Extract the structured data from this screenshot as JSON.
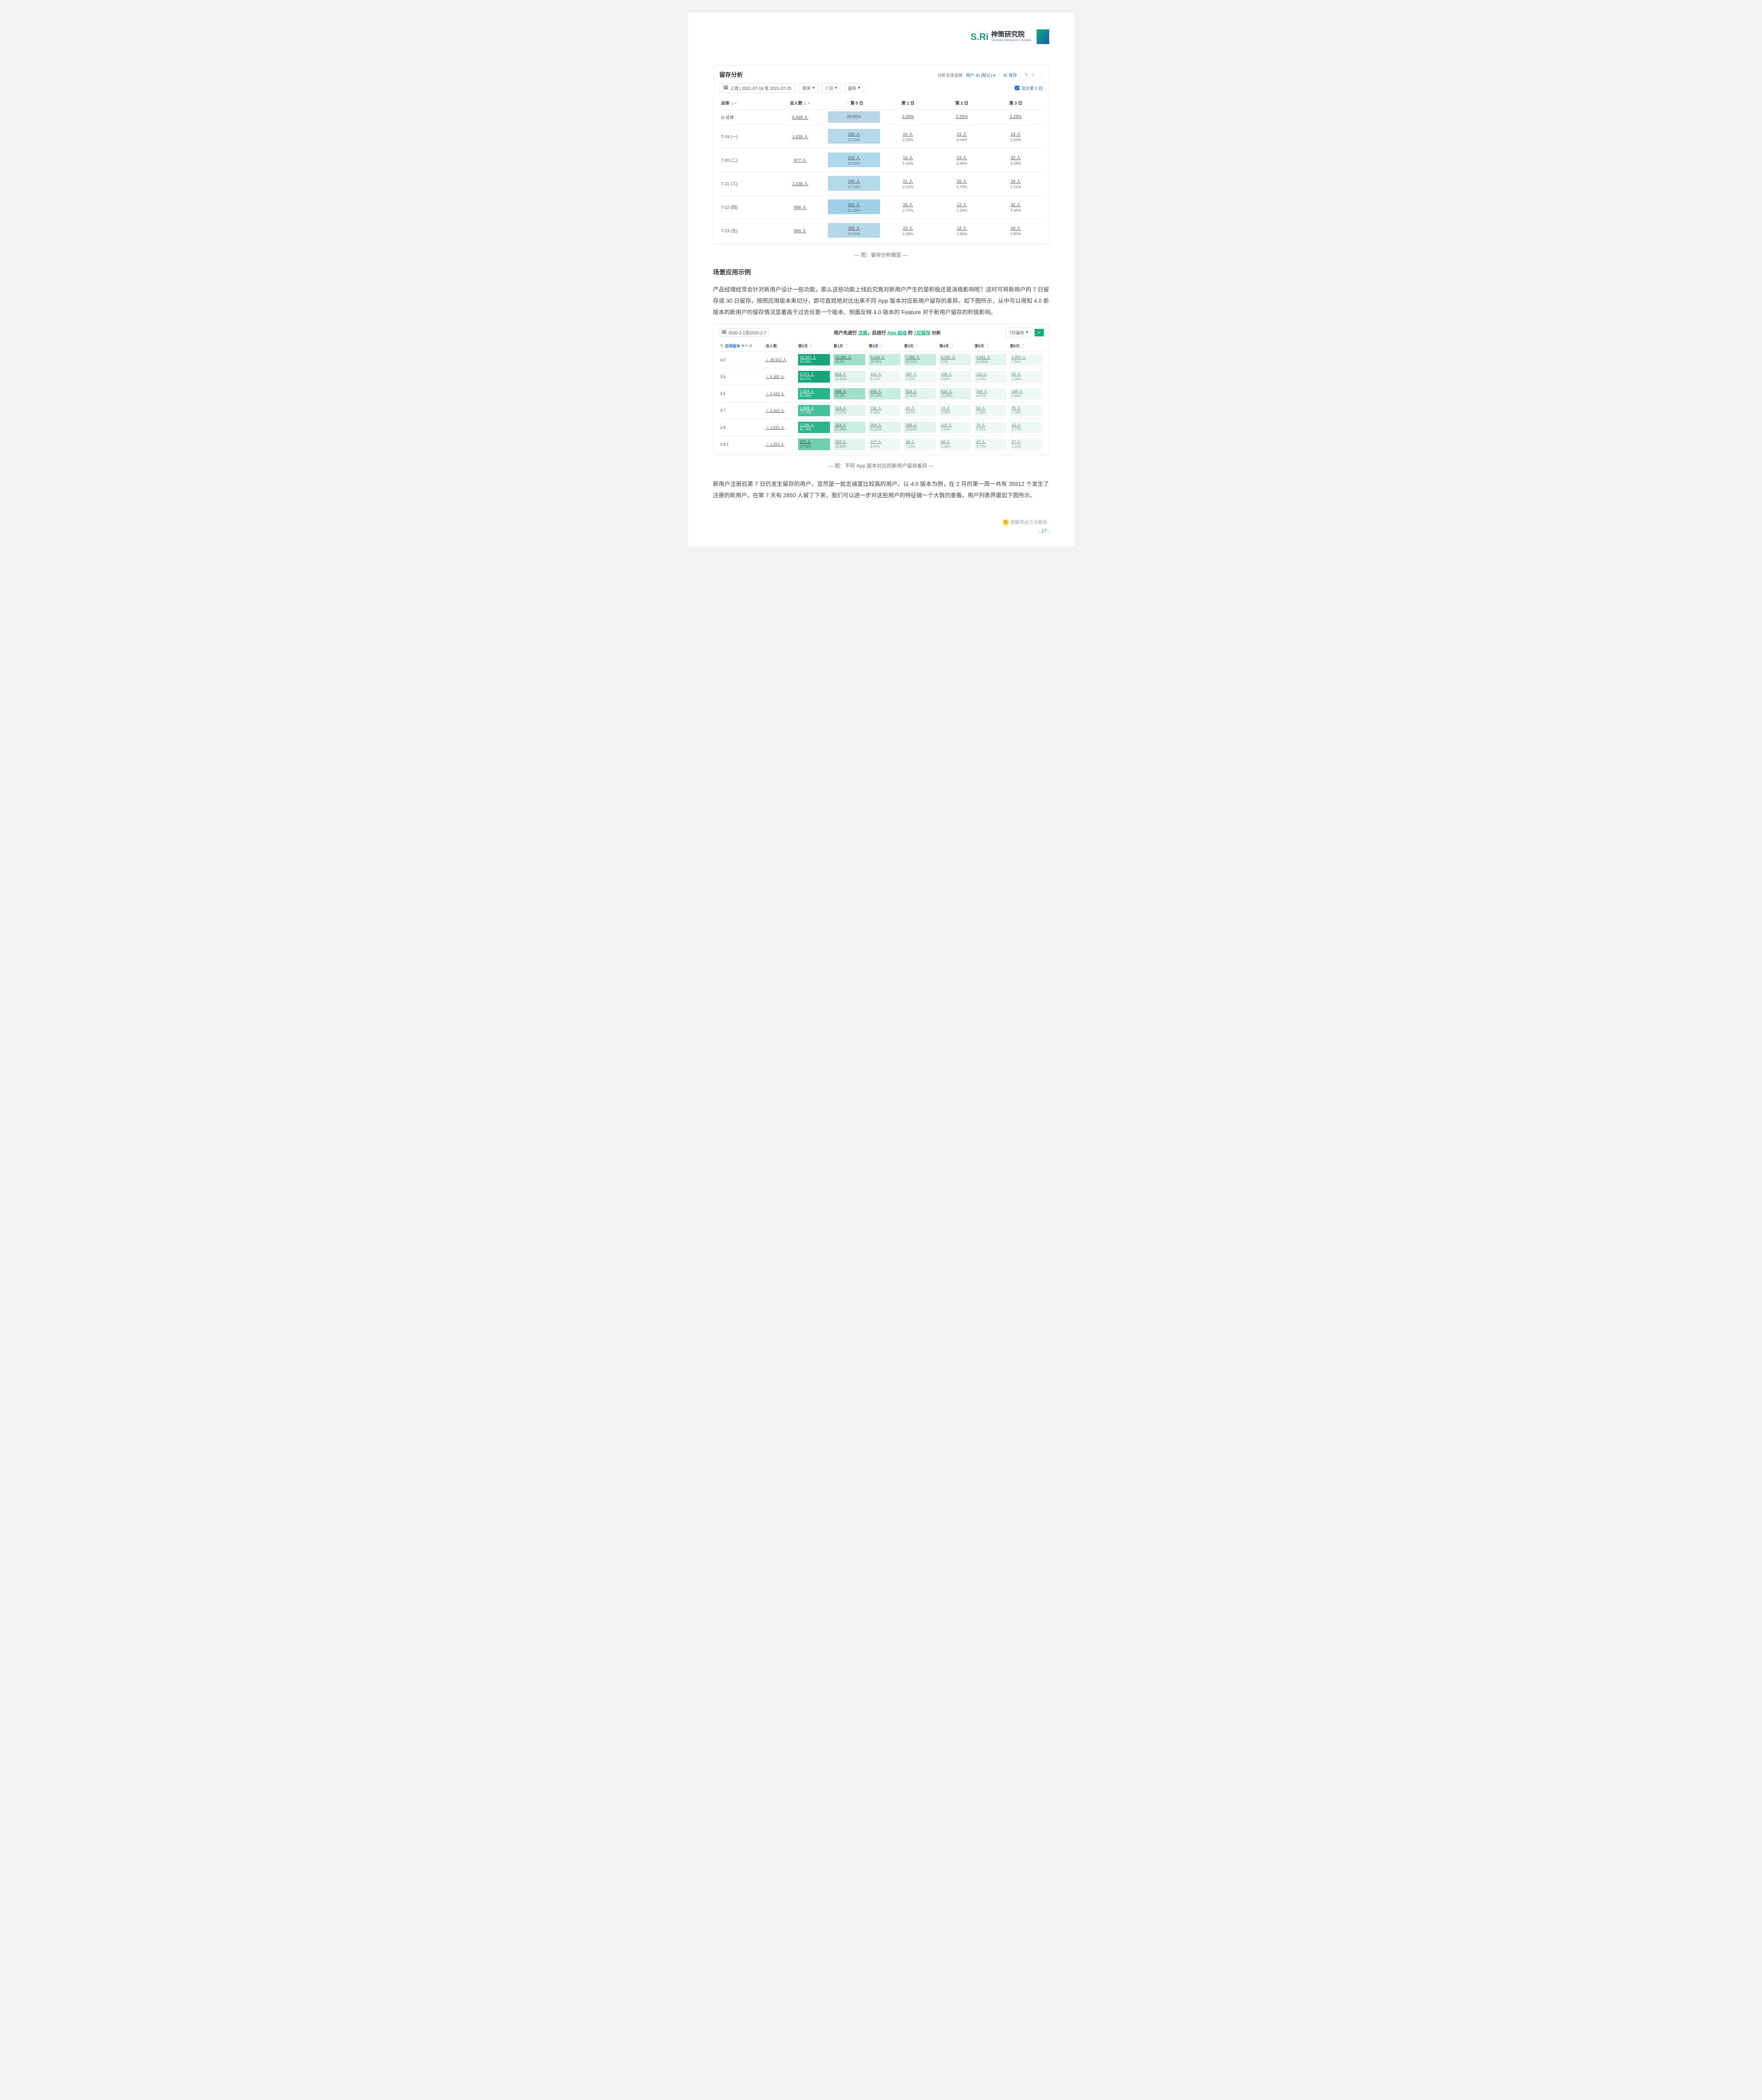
{
  "brand": {
    "sri": "S.Ri",
    "cn": "神策研究院",
    "en": "Sensors Research Institute"
  },
  "panel1": {
    "title": "留存分析",
    "top_right": {
      "label": "分析主体选择",
      "subject": "用户 ID (默认)",
      "save": "保存"
    },
    "controls": {
      "date": "上周 | 2021-07-19 至 2021-07-25",
      "granularity": "按天",
      "window": "7 日",
      "metric": "留存",
      "show_day0": "显示第 0 日"
    },
    "columns": [
      "总体",
      "总人数",
      "第 0 日",
      "第 1 日",
      "第 2 日",
      "第 3 日"
    ],
    "rows": [
      {
        "label": "总体",
        "total": "6,448 人",
        "day0": {
          "top": "29.06%",
          "bot": "",
          "bg": "bg-a",
          "single": true
        },
        "cells": [
          {
            "top": "2.35%",
            "bot": ""
          },
          {
            "top": "2.25%",
            "bot": ""
          },
          {
            "top": "2.29%",
            "bot": ""
          }
        ]
      },
      {
        "label": "7-19 (一)",
        "total": "1,028 人",
        "day0": {
          "top": "280 人",
          "bot": "27.24%",
          "bg": "bg-b"
        },
        "cells": [
          {
            "top": "24 人",
            "bot": "2.33%"
          },
          {
            "top": "21 人",
            "bot": "2.04%"
          },
          {
            "top": "23 人",
            "bot": "2.24%"
          }
        ]
      },
      {
        "label": "7-20 (二)",
        "total": "977 人",
        "day0": {
          "top": "282 人",
          "bot": "28.86%",
          "bg": "bg-c"
        },
        "cells": [
          {
            "top": "16 人",
            "bot": "1.64%"
          },
          {
            "top": "24 人",
            "bot": "2.46%"
          },
          {
            "top": "32 人",
            "bot": "3.28%"
          }
        ]
      },
      {
        "label": "7-21 (三)",
        "total": "1,038 人",
        "day0": {
          "top": "290 人",
          "bot": "27.94%",
          "bg": "bg-b"
        },
        "cells": [
          {
            "top": "21 人",
            "bot": "2.02%"
          },
          {
            "top": "28 人",
            "bot": "2.70%"
          },
          {
            "top": "24 人",
            "bot": "2.31%"
          }
        ]
      },
      {
        "label": "7-22 (四)",
        "total": "956 人",
        "day0": {
          "top": "301 人",
          "bot": "31.49%",
          "bg": "bg-d"
        },
        "cells": [
          {
            "top": "26 人",
            "bot": "2.72%"
          },
          {
            "top": "12 人",
            "bot": "1.26%"
          },
          {
            "top": "32 人",
            "bot": "3.35%"
          }
        ]
      },
      {
        "label": "7-23 (五)",
        "total": "966 人",
        "day0": {
          "top": "285 人",
          "bot": "29.50%",
          "bg": "bg-e"
        },
        "cells": [
          {
            "top": "23 人",
            "bot": "2.38%"
          },
          {
            "top": "18 人",
            "bot": "1.86%"
          },
          {
            "top": "28 人",
            "bot": "2.90%"
          }
        ]
      }
    ]
  },
  "cap1": "— 图：留存分析模型 —",
  "h2": "场景应用示例",
  "p1": "产品经理经常会针对新用户设计一些功能，那么这些功能上线后究竟对新用户产生的是积极还是消极影响呢？这时可将新用户的 7 日留存或 30 日留存，按照应用版本来切分，即可直观地对比出来不同 App 版本对应新用户留存的差异。如下图所示，从中可以得知 4.0 新版本的新用户的留存情况显著高于过去任意一个版本。侧面反映 4.0 版本的 Feature 对于新用户留存的积极影响。",
  "panel2": {
    "date": "2020-2-1至2020-2-7",
    "title_parts": {
      "a": "用户先进行 ",
      "b": "注册",
      "c": "，后进行 ",
      "d": "App 启动",
      "e": " 的 ",
      "f": "7日留存",
      "g": " 分析"
    },
    "right_pill": "7日留存",
    "filter_label": "应用版本",
    "columns": [
      "",
      "总人数",
      "第0天",
      "第1天",
      "第2天",
      "第3天",
      "第4天",
      "第5天",
      "第6天"
    ],
    "rows": [
      {
        "label": "4.0",
        "total": "35,912 人",
        "cells": [
          {
            "t": "33,347 人",
            "b": "92.86%",
            "g": "g0"
          },
          {
            "t": "12,281 人",
            "b": "34.2%",
            "g": "g4"
          },
          {
            "t": "9,165 人",
            "b": "25.52%",
            "g": "g5"
          },
          {
            "t": "7,581 人",
            "b": "21.11%",
            "g": "g5"
          },
          {
            "t": "6,106 人",
            "b": "17%",
            "g": "g6"
          },
          {
            "t": "4,651 人",
            "b": "12.95%",
            "g": "g6"
          },
          {
            "t": "2,850 人",
            "b": "7.94%",
            "g": "g7"
          }
        ]
      },
      {
        "label": "3.9",
        "total": "5,362 人",
        "cells": [
          {
            "t": "5,071 人",
            "b": "94.57%",
            "g": "g0"
          },
          {
            "t": "834 人",
            "b": "15.55%",
            "g": "g6"
          },
          {
            "t": "441 人",
            "b": "8.22%",
            "g": "g7"
          },
          {
            "t": "287 人",
            "b": "5.35%",
            "g": "g7"
          },
          {
            "t": "198 人",
            "b": "3.69%",
            "g": "g7"
          },
          {
            "t": "115 人",
            "b": "2.14%",
            "g": "g7"
          },
          {
            "t": "56 人",
            "b": "1.04%",
            "g": "g7"
          }
        ]
      },
      {
        "label": "3.6",
        "total": "3,433 人",
        "cells": [
          {
            "t": "2,824 人",
            "b": "82.26%",
            "g": "g1"
          },
          {
            "t": "968 人",
            "b": "28.2%",
            "g": "g4"
          },
          {
            "t": "695 人",
            "b": "20.24%",
            "g": "g5"
          },
          {
            "t": "529 人",
            "b": "15.41%",
            "g": "g6"
          },
          {
            "t": "414 人",
            "b": "12.06%",
            "g": "g6"
          },
          {
            "t": "308 人",
            "b": "8.97%",
            "g": "g7"
          },
          {
            "t": "195 人",
            "b": "5.68%",
            "g": "g7"
          }
        ]
      },
      {
        "label": "3.7",
        "total": "2,403 人",
        "cells": [
          {
            "t": "1,868 人",
            "b": "77.74%",
            "g": "g2"
          },
          {
            "t": "314 人",
            "b": "13.07%",
            "g": "g6"
          },
          {
            "t": "156 人",
            "b": "6.49%",
            "g": "g7"
          },
          {
            "t": "93 人",
            "b": "3.87%",
            "g": "g7"
          },
          {
            "t": "74 人",
            "b": "3.08%",
            "g": "g7"
          },
          {
            "t": "50 人",
            "b": "2.08%",
            "g": "g7"
          },
          {
            "t": "25 人",
            "b": "1.04%",
            "g": "g7"
          }
        ]
      },
      {
        "label": "3.8",
        "total": "1,515 人",
        "cells": [
          {
            "t": "1,239 人",
            "b": "81.78%",
            "g": "g1"
          },
          {
            "t": "324 人",
            "b": "21.39%",
            "g": "g5"
          },
          {
            "t": "204 人",
            "b": "13.47%",
            "g": "g6"
          },
          {
            "t": "158 人",
            "b": "10.43%",
            "g": "g6"
          },
          {
            "t": "115 人",
            "b": "7.59%",
            "g": "g7"
          },
          {
            "t": "79 人",
            "b": "5.21%",
            "g": "g7"
          },
          {
            "t": "42 人",
            "b": "2.77%",
            "g": "g7"
          }
        ]
      },
      {
        "label": "3.8.1",
        "total": "1,253 人",
        "cells": [
          {
            "t": "471 人",
            "b": "37.59%",
            "g": "g3"
          },
          {
            "t": "159 人",
            "b": "12.69%",
            "g": "g6"
          },
          {
            "t": "107 人",
            "b": "8.54%",
            "g": "g7"
          },
          {
            "t": "88 人",
            "b": "7.02%",
            "g": "g7"
          },
          {
            "t": "68 人",
            "b": "5.43%",
            "g": "g7"
          },
          {
            "t": "47 人",
            "b": "3.75%",
            "g": "g7"
          },
          {
            "t": "27 人",
            "b": "2.15%",
            "g": "g7"
          }
        ]
      }
    ]
  },
  "cap2": "— 图：不同 App 版本对应的新用户留存差异 —",
  "p2": "新用户注册后第 7 日仍发生留存的用户，显然是一批忠诚度比较高的用户。以 4.0 版本为例，在 2 月的第一周一共有 35912 个发生了注册的新用户，在第 7 天有 2850 人留了下来，我们可以进一步对这些用户的特征做一个大致的查看。用户列表界面如下图所示。",
  "pagefoot": "- 17 -",
  "sohu": "搜狐号@三分报告"
}
